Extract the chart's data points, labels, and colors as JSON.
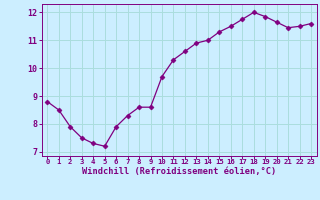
{
  "x": [
    0,
    1,
    2,
    3,
    4,
    5,
    6,
    7,
    8,
    9,
    10,
    11,
    12,
    13,
    14,
    15,
    16,
    17,
    18,
    19,
    20,
    21,
    22,
    23
  ],
  "y": [
    8.8,
    8.5,
    7.9,
    7.5,
    7.3,
    7.2,
    7.9,
    8.3,
    8.6,
    8.6,
    9.7,
    10.3,
    10.6,
    10.9,
    11.0,
    11.3,
    11.5,
    11.75,
    12.0,
    11.85,
    11.65,
    11.45,
    11.5,
    11.6
  ],
  "line_color": "#800080",
  "marker": "D",
  "marker_size": 2.5,
  "bg_color": "#cceeff",
  "grid_color": "#aadddd",
  "xlabel": "Windchill (Refroidissement éolien,°C)",
  "xlabel_color": "#800080",
  "tick_color": "#800080",
  "ylim": [
    6.85,
    12.3
  ],
  "xlim": [
    -0.5,
    23.5
  ],
  "yticks": [
    7,
    8,
    9,
    10,
    11,
    12
  ],
  "xticks": [
    0,
    1,
    2,
    3,
    4,
    5,
    6,
    7,
    8,
    9,
    10,
    11,
    12,
    13,
    14,
    15,
    16,
    17,
    18,
    19,
    20,
    21,
    22,
    23
  ]
}
